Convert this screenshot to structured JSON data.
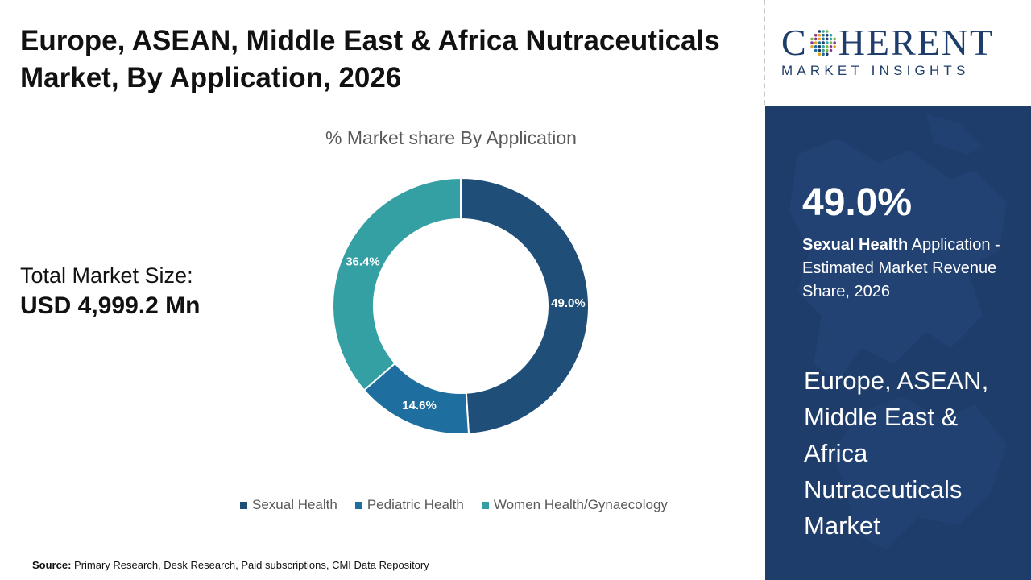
{
  "header": {
    "title": "Europe, ASEAN, Middle East & Africa Nutraceuticals Market, By Application, 2026"
  },
  "total_market": {
    "label": "Total Market Size:",
    "value": "USD 4,999.2 Mn"
  },
  "chart_data": {
    "type": "pie",
    "donut": true,
    "title": "% Market share By Application",
    "categories": [
      "Sexual Health",
      "Pediatric Health",
      "Women Health/Gynaecology"
    ],
    "values": [
      49.0,
      14.6,
      36.4
    ],
    "labels": [
      "49.0%",
      "14.6%",
      "36.4%"
    ],
    "colors": [
      "#1f4e79",
      "#1e6f9f",
      "#34a0a4"
    ],
    "legend_position": "bottom"
  },
  "source": {
    "label": "Source:",
    "text": "Primary Research, Desk Research, Paid subscriptions, CMI Data Repository"
  },
  "logo": {
    "main_left": "C",
    "main_right": "HERENT",
    "sub": "MARKET INSIGHTS"
  },
  "side_panel": {
    "stat_value": "49.0%",
    "stat_bold": "Sexual Health",
    "stat_rest": " Application - Estimated Market Revenue Share, 2026",
    "market_name": "Europe, ASEAN, Middle East & Africa Nutraceuticals Market"
  },
  "colors": {
    "panel_bg": "#1f3d6b",
    "brand": "#1f3d6b"
  }
}
